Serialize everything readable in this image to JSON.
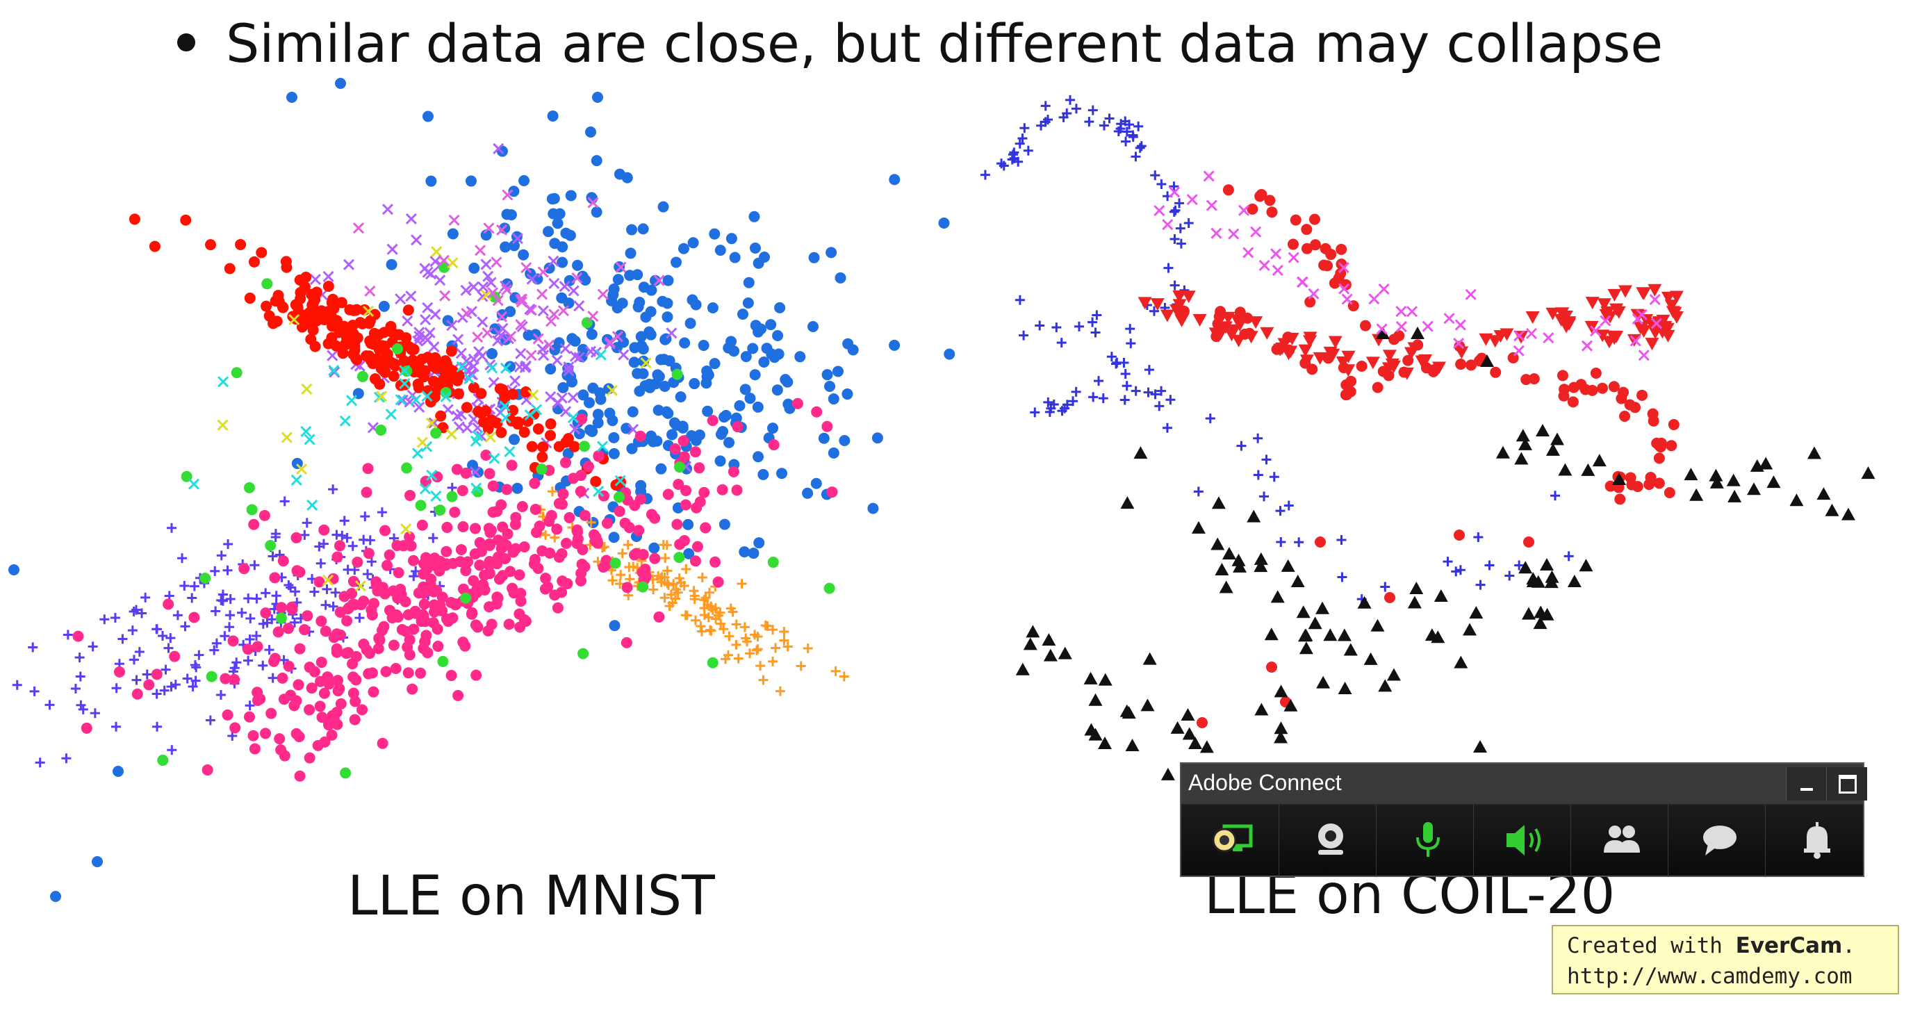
{
  "slide": {
    "bullet": "Similar data are close, but different data may collapse",
    "caption_left": "LLE on MNIST",
    "caption_right": "LLE on COIL-20"
  },
  "adobe_connect": {
    "title": "Adobe Connect",
    "toolbar_icons": [
      "share-screen-icon",
      "webcam-icon",
      "microphone-icon",
      "speaker-icon",
      "attendees-icon",
      "chat-icon",
      "notification-bell-icon"
    ],
    "active_color": "#33cc33"
  },
  "evercam": {
    "prefix": "Created with ",
    "brand": "EverCam",
    "suffix": ".",
    "url": "http://www.camdemy.com"
  },
  "chart_data": [
    {
      "type": "scatter",
      "title": "LLE on MNIST",
      "xlabel": "",
      "ylabel": "",
      "grid": false,
      "legend": "none",
      "series": [
        {
          "color": "#ff1100",
          "marker": "circle"
        },
        {
          "color": "#1f6fe0",
          "marker": "circle"
        },
        {
          "color": "#ff2a8a",
          "marker": "circle"
        },
        {
          "color": "#b060ff",
          "marker": "cross"
        },
        {
          "color": "#5a3df0",
          "marker": "plus"
        },
        {
          "color": "#ff9a22",
          "marker": "plus"
        },
        {
          "color": "#33dd33",
          "marker": "circle"
        },
        {
          "color": "#22dddd",
          "marker": "cross"
        },
        {
          "color": "#dddd22",
          "marker": "cross"
        },
        {
          "color": "#e060e0",
          "marker": "cross"
        }
      ]
    },
    {
      "type": "scatter",
      "title": "LLE on COIL-20",
      "xlabel": "",
      "ylabel": "",
      "grid": false,
      "legend": "none",
      "series": [
        {
          "color": "#3333dd",
          "marker": "plus"
        },
        {
          "color": "#ee2222",
          "marker": "circle"
        },
        {
          "color": "#ee2222",
          "marker": "triangle-down"
        },
        {
          "color": "#111111",
          "marker": "triangle-up"
        },
        {
          "color": "#ee55ee",
          "marker": "cross"
        }
      ]
    }
  ]
}
